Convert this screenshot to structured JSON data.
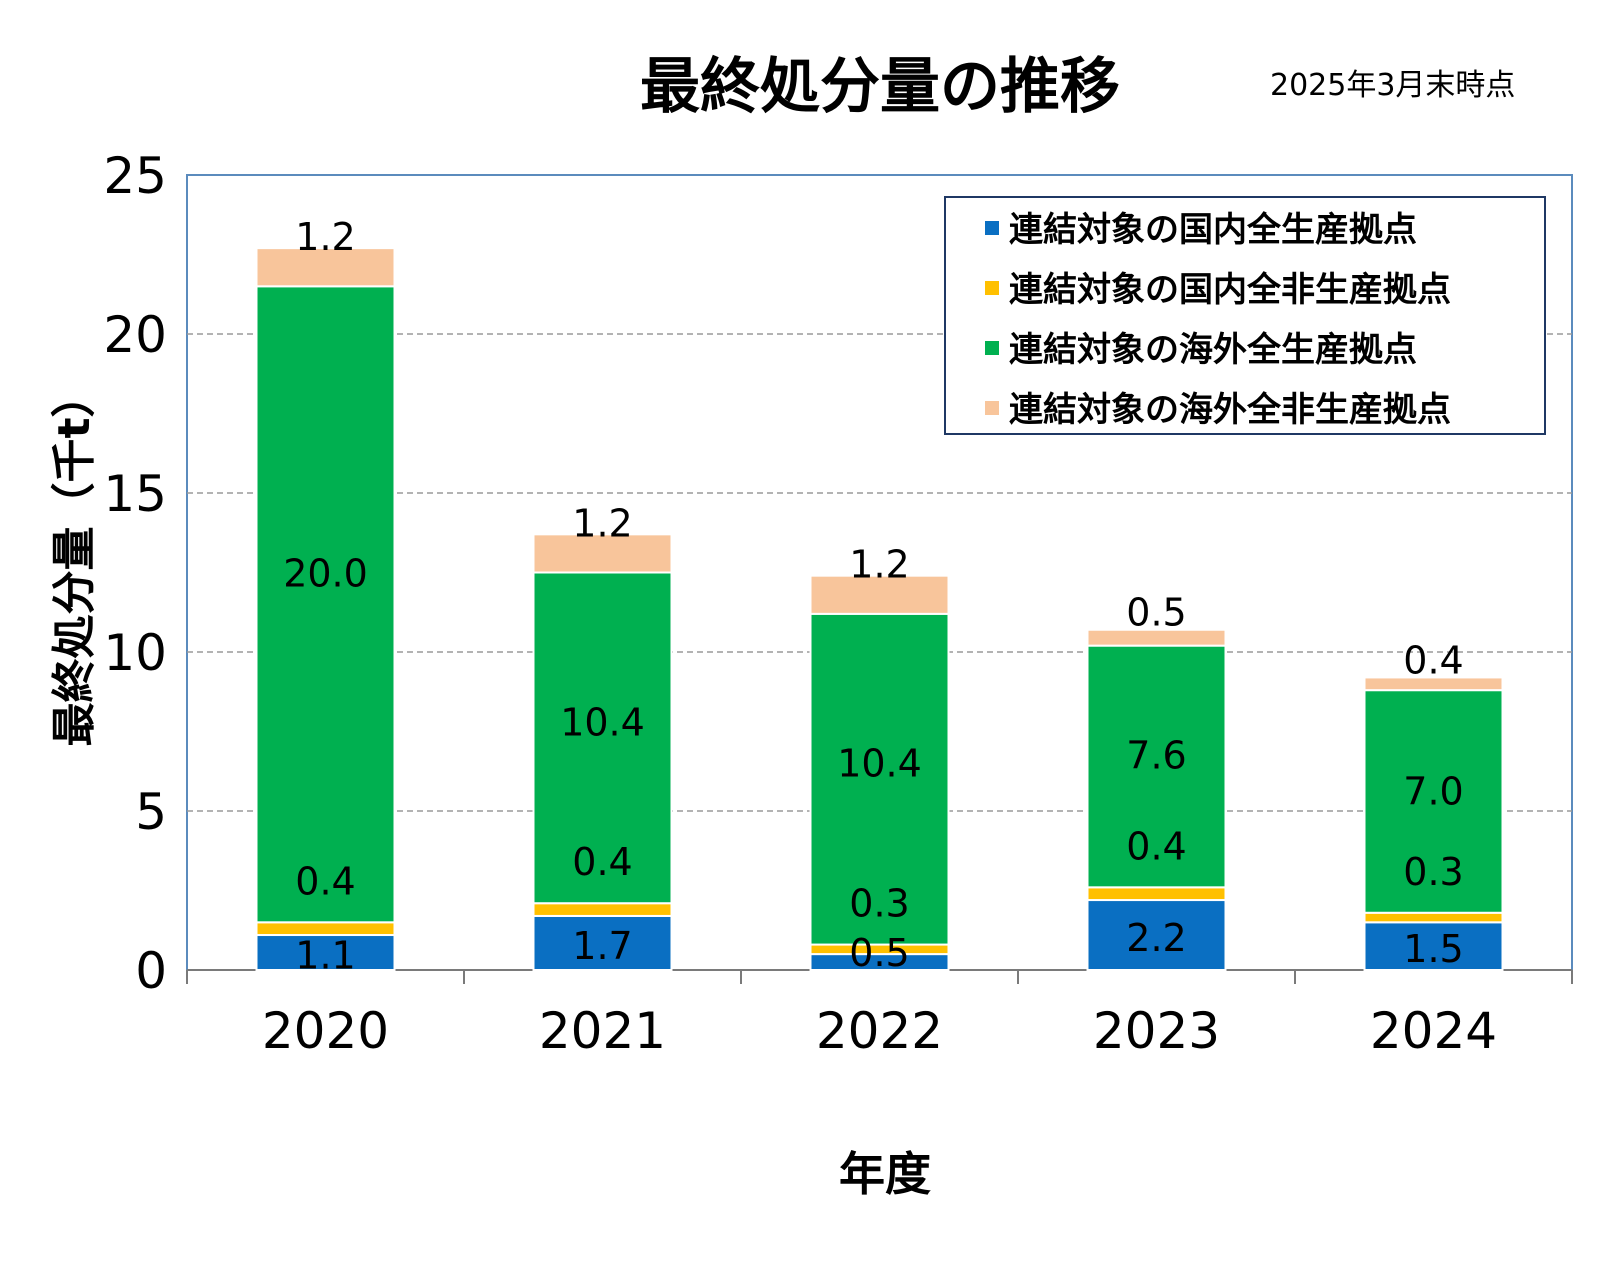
{
  "title": "最終処分量の推移",
  "as_of": "2025年3月末時点",
  "colors": {
    "domestic_production": "#0a6fc2",
    "domestic_non_production": "#ffc000",
    "overseas_production": "#00b050",
    "overseas_non_production": "#f8c59b",
    "grid": "#9a9a9a",
    "axis": "#7a7a7a",
    "plot_border": "#5b8bbd",
    "legend_border": "#1f3864"
  },
  "chart_data": {
    "type": "bar",
    "stacked": true,
    "title": "最終処分量の推移",
    "xlabel": "年度",
    "ylabel": "最終処分量（千t）",
    "categories": [
      "2020",
      "2021",
      "2022",
      "2023",
      "2024"
    ],
    "ylim": [
      0,
      25
    ],
    "yticks": [
      0,
      5,
      10,
      15,
      20,
      25
    ],
    "grid": true,
    "legend_position": "top-right",
    "series": [
      {
        "name": "連結対象の国内全生産拠点",
        "color": "#0a6fc2",
        "values": [
          1.1,
          1.7,
          0.5,
          2.2,
          1.5
        ],
        "labels": [
          "1.1",
          "1.7",
          "0.5",
          "2.2",
          "1.5"
        ]
      },
      {
        "name": "連結対象の国内全非生産拠点",
        "color": "#ffc000",
        "values": [
          0.4,
          0.4,
          0.3,
          0.4,
          0.3
        ],
        "labels": [
          "0.4",
          "0.4",
          "0.3",
          "0.4",
          "0.3"
        ]
      },
      {
        "name": "連結対象の海外全生産拠点",
        "color": "#00b050",
        "values": [
          20.0,
          10.4,
          10.4,
          7.6,
          7.0
        ],
        "labels": [
          "20.0",
          "10.4",
          "10.4",
          "7.6",
          "7.0"
        ]
      },
      {
        "name": "連結対象の海外全非生産拠点",
        "color": "#f8c59b",
        "values": [
          1.2,
          1.2,
          1.2,
          0.5,
          0.4
        ],
        "labels": [
          "1.2",
          "1.2",
          "1.2",
          "0.5",
          "0.4"
        ]
      }
    ]
  }
}
